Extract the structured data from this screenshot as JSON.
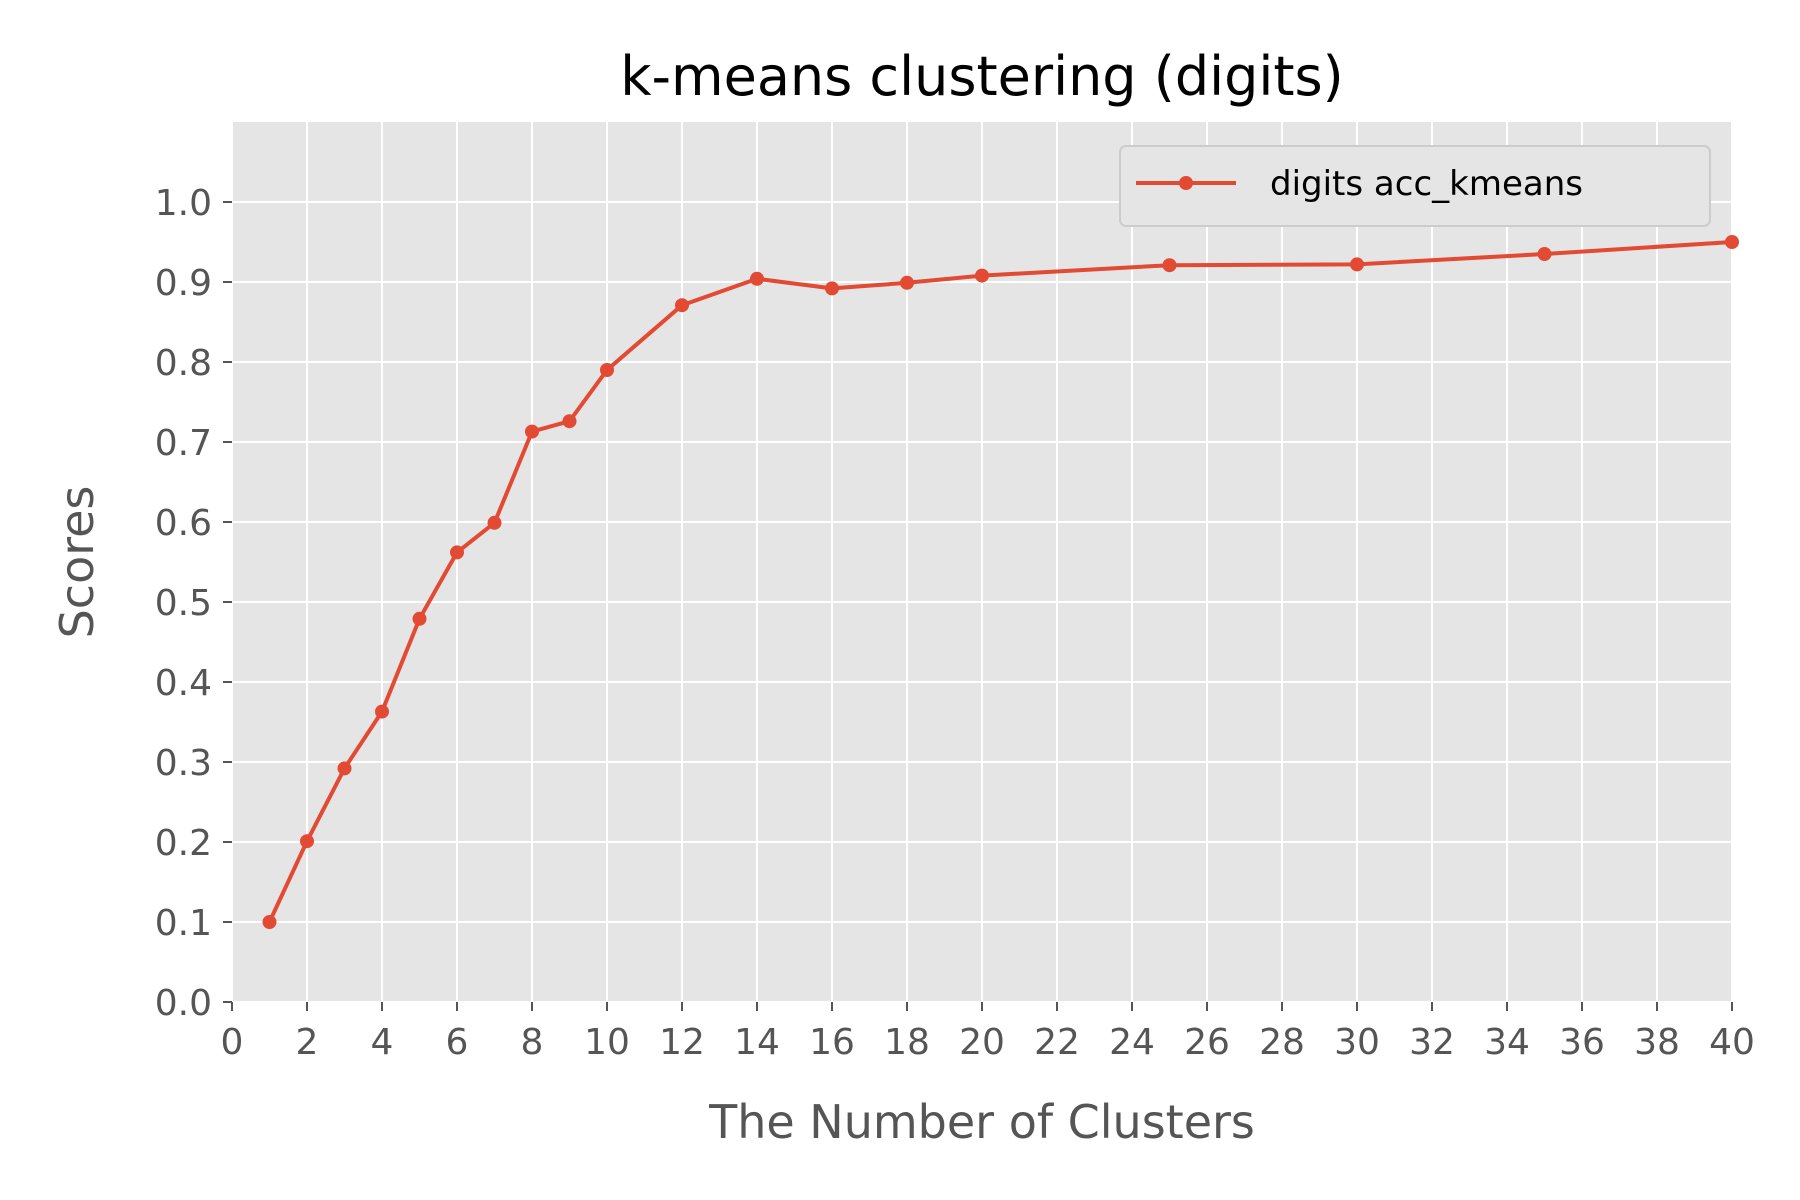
{
  "chart_data": {
    "type": "line",
    "title": "k-means clustering (digits)",
    "xlabel": "The Number of Clusters",
    "ylabel": "Scores",
    "xlim": [
      0,
      40
    ],
    "ylim": [
      0,
      1.1
    ],
    "x_ticks": [
      "0",
      "2",
      "4",
      "6",
      "8",
      "10",
      "12",
      "14",
      "16",
      "18",
      "20",
      "22",
      "24",
      "26",
      "28",
      "30",
      "32",
      "34",
      "36",
      "38",
      "40"
    ],
    "y_ticks": [
      "0.0",
      "0.1",
      "0.2",
      "0.3",
      "0.4",
      "0.5",
      "0.6",
      "0.7",
      "0.8",
      "0.9",
      "1.0"
    ],
    "grid": true,
    "legend_position": "top-right",
    "series": [
      {
        "name": "digits acc_kmeans",
        "color": "#E24A33",
        "marker": "circle",
        "x": [
          1,
          2,
          3,
          4,
          5,
          6,
          7,
          8,
          9,
          10,
          12,
          14,
          16,
          18,
          20,
          25,
          30,
          35,
          40
        ],
        "values": [
          0.1,
          0.201,
          0.292,
          0.363,
          0.479,
          0.562,
          0.599,
          0.713,
          0.726,
          0.79,
          0.871,
          0.904,
          0.892,
          0.899,
          0.908,
          0.921,
          0.922,
          0.935,
          0.95
        ]
      }
    ],
    "colors": {
      "plot_background": "#E5E5E5",
      "grid": "#FFFFFF",
      "tick_text": "#555555",
      "title_text": "#000000"
    }
  }
}
